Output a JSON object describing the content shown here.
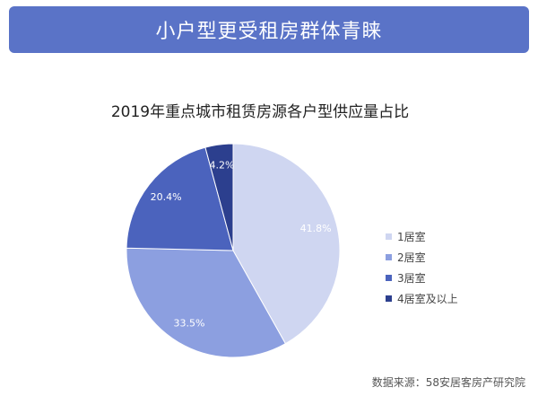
{
  "banner": {
    "title": "小户型更受租房群体青睐"
  },
  "source": "数据来源：58安居客房产研究院",
  "chart_data": {
    "type": "pie",
    "title": "2019年重点城市租赁房源各户型供应量占比",
    "series": [
      {
        "name": "1居室",
        "value": 41.8,
        "label": "41.8%",
        "color": "#cfd6f1"
      },
      {
        "name": "2居室",
        "value": 33.5,
        "label": "33.5%",
        "color": "#8c9fe0"
      },
      {
        "name": "3居室",
        "value": 20.4,
        "label": "20.4%",
        "color": "#4b63bd"
      },
      {
        "name": "4居室及以上",
        "value": 4.2,
        "label": "4.2%",
        "color": "#2c3f8e"
      }
    ],
    "legend_position": "right"
  }
}
